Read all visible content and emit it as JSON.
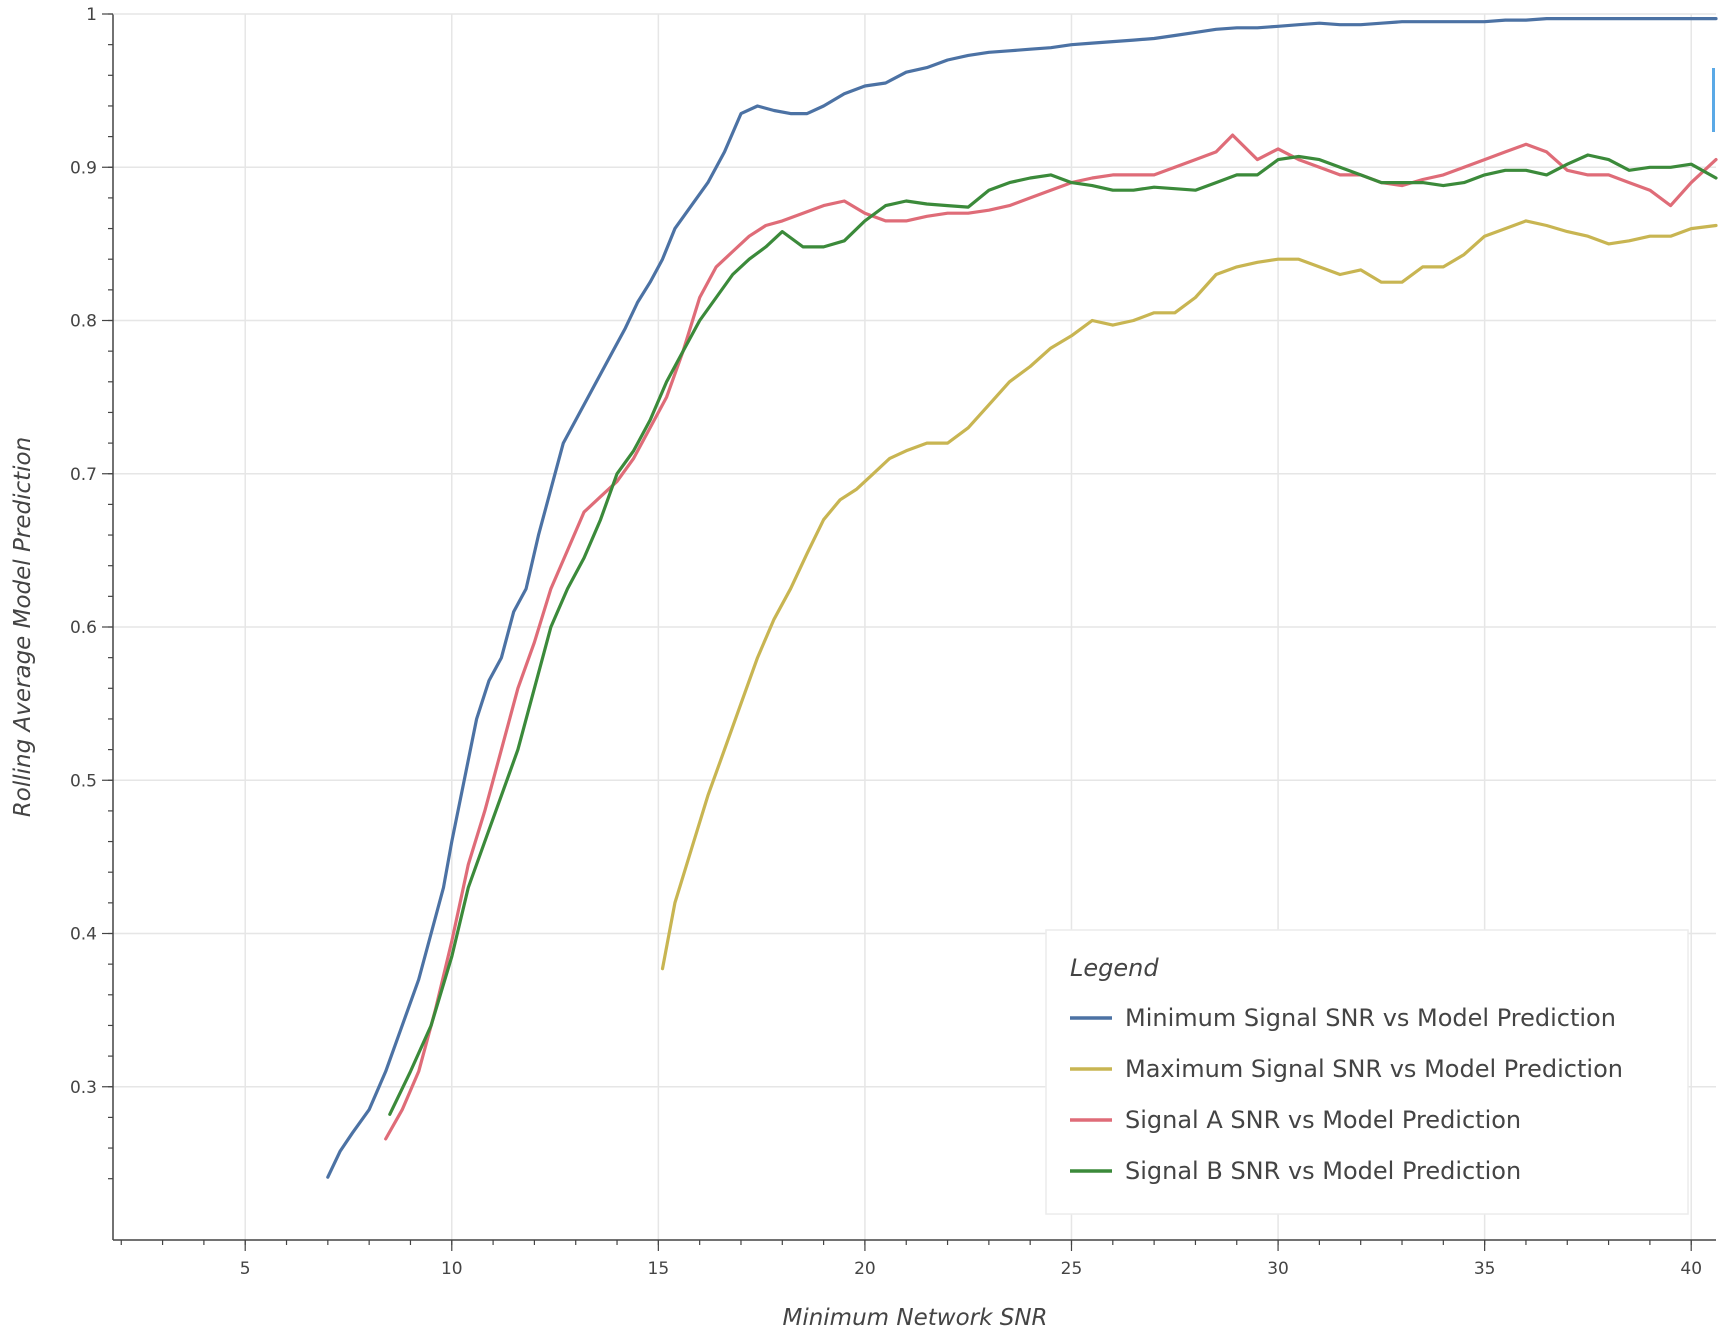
{
  "chart_data": {
    "type": "line",
    "xlabel": "Minimum Network SNR",
    "ylabel": "Rolling Average Model Prediction",
    "xlim": [
      1.8,
      40.6
    ],
    "ylim": [
      0.2,
      1.0
    ],
    "x_ticks": [
      5,
      10,
      15,
      20,
      25,
      30,
      35,
      40
    ],
    "y_ticks": [
      0.3,
      0.4,
      0.5,
      0.6,
      0.7,
      0.8,
      0.9,
      1
    ],
    "grid": true,
    "legend": {
      "title": "Legend",
      "placement": "bottom-right"
    },
    "series": [
      {
        "name": "Minimum Signal SNR vs Model Prediction",
        "color": "#4c72a4",
        "x": [
          7.0,
          7.3,
          7.6,
          8.0,
          8.4,
          8.8,
          9.2,
          9.5,
          9.8,
          10.0,
          10.3,
          10.6,
          10.9,
          11.2,
          11.5,
          11.8,
          12.1,
          12.4,
          12.7,
          13.0,
          13.3,
          13.6,
          13.9,
          14.2,
          14.5,
          14.8,
          15.1,
          15.4,
          15.8,
          16.2,
          16.6,
          17.0,
          17.4,
          17.8,
          18.2,
          18.6,
          19.0,
          19.5,
          20.0,
          20.5,
          21.0,
          21.5,
          22.0,
          22.5,
          23.0,
          23.5,
          24.0,
          24.5,
          25.0,
          25.5,
          26.0,
          26.5,
          27.0,
          27.5,
          28.0,
          28.5,
          29.0,
          29.5,
          30.0,
          30.5,
          31.0,
          31.5,
          32.0,
          32.5,
          33.0,
          33.5,
          34.0,
          34.5,
          35.0,
          35.5,
          36.0,
          36.5,
          37.0,
          38.0,
          39.0,
          40.0,
          40.6
        ],
        "y": [
          0.241,
          0.258,
          0.27,
          0.285,
          0.31,
          0.34,
          0.37,
          0.4,
          0.43,
          0.46,
          0.5,
          0.54,
          0.565,
          0.58,
          0.61,
          0.625,
          0.66,
          0.69,
          0.72,
          0.735,
          0.75,
          0.765,
          0.78,
          0.795,
          0.812,
          0.825,
          0.84,
          0.86,
          0.875,
          0.89,
          0.91,
          0.935,
          0.94,
          0.937,
          0.935,
          0.935,
          0.94,
          0.948,
          0.953,
          0.955,
          0.962,
          0.965,
          0.97,
          0.973,
          0.975,
          0.976,
          0.977,
          0.978,
          0.98,
          0.981,
          0.982,
          0.983,
          0.984,
          0.986,
          0.988,
          0.99,
          0.991,
          0.991,
          0.992,
          0.993,
          0.994,
          0.993,
          0.993,
          0.994,
          0.995,
          0.995,
          0.995,
          0.995,
          0.995,
          0.996,
          0.996,
          0.997,
          0.997,
          0.997,
          0.997,
          0.997,
          0.997
        ]
      },
      {
        "name": "Maximum Signal SNR vs Model Prediction",
        "color": "#c8b552",
        "x": [
          15.1,
          15.4,
          15.8,
          16.2,
          16.6,
          17.0,
          17.4,
          17.8,
          18.2,
          18.6,
          19.0,
          19.4,
          19.8,
          20.2,
          20.6,
          21.0,
          21.5,
          22.0,
          22.5,
          23.0,
          23.5,
          24.0,
          24.5,
          25.0,
          25.5,
          26.0,
          26.5,
          27.0,
          27.5,
          28.0,
          28.5,
          29.0,
          29.5,
          30.0,
          30.5,
          31.0,
          31.5,
          32.0,
          32.5,
          33.0,
          33.5,
          34.0,
          34.5,
          35.0,
          35.5,
          36.0,
          36.5,
          37.0,
          37.5,
          38.0,
          38.5,
          39.0,
          39.5,
          40.0,
          40.6
        ],
        "y": [
          0.377,
          0.42,
          0.455,
          0.49,
          0.52,
          0.55,
          0.58,
          0.605,
          0.625,
          0.648,
          0.67,
          0.683,
          0.69,
          0.7,
          0.71,
          0.715,
          0.72,
          0.72,
          0.73,
          0.745,
          0.76,
          0.77,
          0.782,
          0.79,
          0.8,
          0.797,
          0.8,
          0.805,
          0.805,
          0.815,
          0.83,
          0.835,
          0.838,
          0.84,
          0.84,
          0.835,
          0.83,
          0.833,
          0.825,
          0.825,
          0.835,
          0.835,
          0.843,
          0.855,
          0.86,
          0.865,
          0.862,
          0.858,
          0.855,
          0.85,
          0.852,
          0.855,
          0.855,
          0.86,
          0.862
        ]
      },
      {
        "name": "Signal A SNR vs Model Prediction",
        "color": "#df6c78",
        "x": [
          8.4,
          8.8,
          9.2,
          9.6,
          10.0,
          10.4,
          10.8,
          11.2,
          11.6,
          12.0,
          12.4,
          12.8,
          13.2,
          13.6,
          14.0,
          14.4,
          14.8,
          15.2,
          15.6,
          16.0,
          16.4,
          16.8,
          17.2,
          17.6,
          18.0,
          18.5,
          19.0,
          19.5,
          20.0,
          20.5,
          21.0,
          21.5,
          22.0,
          22.5,
          23.0,
          23.5,
          24.0,
          24.5,
          25.0,
          25.5,
          26.0,
          26.5,
          27.0,
          27.5,
          28.0,
          28.5,
          28.9,
          29.5,
          30.0,
          30.5,
          31.0,
          31.5,
          32.0,
          32.5,
          33.0,
          33.5,
          34.0,
          34.5,
          35.0,
          35.5,
          36.0,
          36.5,
          37.0,
          37.5,
          38.0,
          38.5,
          39.0,
          39.5,
          40.0,
          40.6
        ],
        "y": [
          0.266,
          0.285,
          0.31,
          0.35,
          0.395,
          0.445,
          0.48,
          0.52,
          0.56,
          0.59,
          0.625,
          0.65,
          0.675,
          0.685,
          0.695,
          0.71,
          0.73,
          0.75,
          0.78,
          0.815,
          0.835,
          0.845,
          0.855,
          0.862,
          0.865,
          0.87,
          0.875,
          0.878,
          0.87,
          0.865,
          0.865,
          0.868,
          0.87,
          0.87,
          0.872,
          0.875,
          0.88,
          0.885,
          0.89,
          0.893,
          0.895,
          0.895,
          0.895,
          0.9,
          0.905,
          0.91,
          0.921,
          0.905,
          0.912,
          0.905,
          0.9,
          0.895,
          0.895,
          0.89,
          0.888,
          0.892,
          0.895,
          0.9,
          0.905,
          0.91,
          0.915,
          0.91,
          0.898,
          0.895,
          0.895,
          0.89,
          0.885,
          0.875,
          0.89,
          0.905
        ]
      },
      {
        "name": "Signal B SNR vs Model Prediction",
        "color": "#3b8a3a",
        "x": [
          8.5,
          9.0,
          9.5,
          10.0,
          10.4,
          10.8,
          11.2,
          11.6,
          12.0,
          12.4,
          12.8,
          13.2,
          13.6,
          14.0,
          14.4,
          14.8,
          15.2,
          15.6,
          16.0,
          16.4,
          16.8,
          17.2,
          17.6,
          18.0,
          18.5,
          19.0,
          19.5,
          20.0,
          20.5,
          21.0,
          21.5,
          22.0,
          22.5,
          23.0,
          23.5,
          24.0,
          24.5,
          25.0,
          25.5,
          26.0,
          26.5,
          27.0,
          27.5,
          28.0,
          28.5,
          29.0,
          29.5,
          30.0,
          30.5,
          31.0,
          31.5,
          32.0,
          32.5,
          33.0,
          33.5,
          34.0,
          34.5,
          35.0,
          35.5,
          36.0,
          36.5,
          37.0,
          37.5,
          38.0,
          38.5,
          39.0,
          39.5,
          40.0,
          40.6
        ],
        "y": [
          0.282,
          0.31,
          0.34,
          0.385,
          0.43,
          0.46,
          0.49,
          0.52,
          0.56,
          0.6,
          0.625,
          0.645,
          0.67,
          0.7,
          0.715,
          0.735,
          0.76,
          0.78,
          0.8,
          0.815,
          0.83,
          0.84,
          0.848,
          0.858,
          0.848,
          0.848,
          0.852,
          0.865,
          0.875,
          0.878,
          0.876,
          0.875,
          0.874,
          0.885,
          0.89,
          0.893,
          0.895,
          0.89,
          0.888,
          0.885,
          0.885,
          0.887,
          0.886,
          0.885,
          0.89,
          0.895,
          0.895,
          0.905,
          0.907,
          0.905,
          0.9,
          0.895,
          0.89,
          0.89,
          0.89,
          0.888,
          0.89,
          0.895,
          0.898,
          0.898,
          0.895,
          0.902,
          0.908,
          0.905,
          0.898,
          0.9,
          0.9,
          0.902,
          0.893
        ]
      }
    ]
  }
}
